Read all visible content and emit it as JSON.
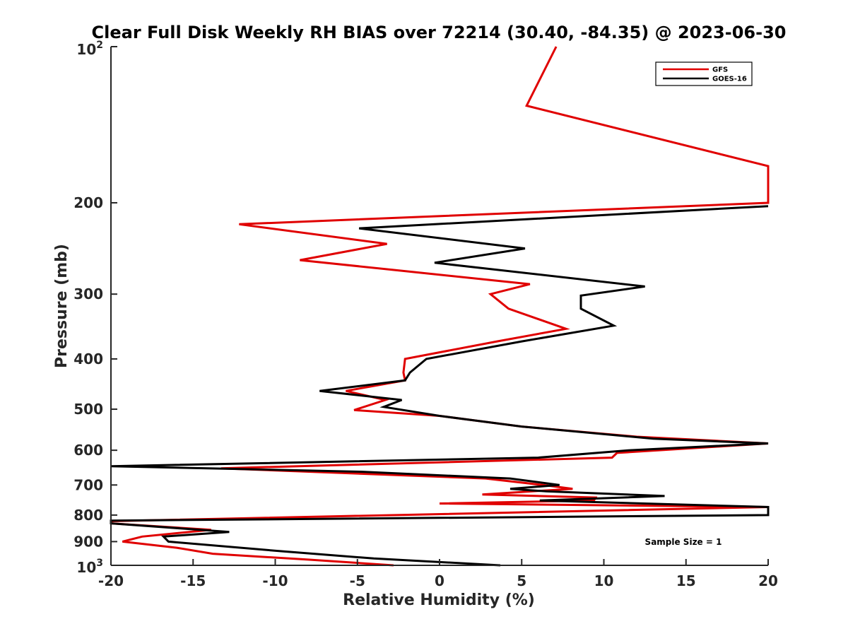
{
  "chart_data": {
    "type": "line",
    "title": "Clear Full Disk Weekly RH BIAS over 72214 (30.40, -84.35) @ 2023-06-30",
    "xlabel": "Relative Humidity (%)",
    "ylabel": "Pressure (mb)",
    "xlim": [
      -20,
      20
    ],
    "ylim": [
      100,
      1000
    ],
    "yscale": "log",
    "y_reversed": true,
    "xticks": [
      -20,
      -15,
      -10,
      -5,
      0,
      5,
      10,
      15,
      20
    ],
    "xtick_labels": [
      "-20",
      "-15",
      "-10",
      "-5",
      "0",
      "5",
      "10",
      "15",
      "20"
    ],
    "yticks": [
      200,
      300,
      400,
      500,
      600,
      700,
      800,
      900
    ],
    "ytick_labels": [
      "200",
      "300",
      "400",
      "500",
      "600",
      "700",
      "800",
      "900"
    ],
    "ytick_power_base": "10",
    "ytick_power_top_exp": "2",
    "ytick_power_bottom_exp": "3",
    "legend_position": "top-right",
    "annotation": "Sample Size = 1",
    "series": [
      {
        "name": "GFS",
        "color": "#e00000",
        "points": [
          [
            7.1,
            100
          ],
          [
            5.3,
            130
          ],
          [
            20,
            170
          ],
          [
            20,
            200
          ],
          [
            -12.2,
            220
          ],
          [
            -3.2,
            240
          ],
          [
            -8.5,
            258
          ],
          [
            5.5,
            287
          ],
          [
            3.1,
            300
          ],
          [
            4.2,
            320
          ],
          [
            7.7,
            350
          ],
          [
            3.5,
            370
          ],
          [
            -2.1,
            400
          ],
          [
            -2.2,
            425
          ],
          [
            -2.1,
            440
          ],
          [
            -5.7,
            461
          ],
          [
            -3.3,
            480
          ],
          [
            -5.2,
            502
          ],
          [
            0,
            515
          ],
          [
            5,
            540
          ],
          [
            12,
            565
          ],
          [
            20,
            582
          ],
          [
            10.8,
            607
          ],
          [
            10.5,
            620
          ],
          [
            -13.3,
            650
          ],
          [
            2.8,
            680
          ],
          [
            6.3,
            700
          ],
          [
            8.1,
            712
          ],
          [
            2.6,
            730
          ],
          [
            9.5,
            740
          ],
          [
            9.4,
            750
          ],
          [
            0,
            760
          ],
          [
            20,
            772
          ],
          [
            -20,
            822
          ],
          [
            -20,
            830
          ],
          [
            -13.9,
            854
          ],
          [
            -18.1,
            880
          ],
          [
            -19.3,
            900
          ],
          [
            -16,
            925
          ],
          [
            -13.8,
            950
          ],
          [
            -8,
            975
          ],
          [
            -2.8,
            1000
          ]
        ]
      },
      {
        "name": "GOES-16",
        "color": "#000000",
        "points": [
          [
            20,
            203
          ],
          [
            -4.9,
            224
          ],
          [
            5.2,
            245
          ],
          [
            -0.3,
            261
          ],
          [
            12.5,
            290
          ],
          [
            8.6,
            302
          ],
          [
            8.6,
            320
          ],
          [
            10.6,
            345
          ],
          [
            5,
            370
          ],
          [
            -0.8,
            400
          ],
          [
            -1.8,
            425
          ],
          [
            -2.1,
            440
          ],
          [
            -7.3,
            461
          ],
          [
            -2.3,
            480
          ],
          [
            -3.4,
            495
          ],
          [
            0,
            515
          ],
          [
            5,
            540
          ],
          [
            13,
            570
          ],
          [
            20,
            582
          ],
          [
            11.5,
            600
          ],
          [
            6,
            620
          ],
          [
            -20,
            644
          ],
          [
            -4.8,
            660
          ],
          [
            4.3,
            680
          ],
          [
            7.3,
            700
          ],
          [
            4.3,
            712
          ],
          [
            6.5,
            720
          ],
          [
            13.7,
            735
          ],
          [
            6.1,
            750
          ],
          [
            20,
            772
          ],
          [
            20,
            800
          ],
          [
            -20,
            820
          ],
          [
            -20,
            830
          ],
          [
            -12.8,
            862
          ],
          [
            -16.8,
            880
          ],
          [
            -16.5,
            900
          ],
          [
            -9.5,
            940
          ],
          [
            -4,
            970
          ],
          [
            3.7,
            1000
          ]
        ]
      }
    ]
  }
}
